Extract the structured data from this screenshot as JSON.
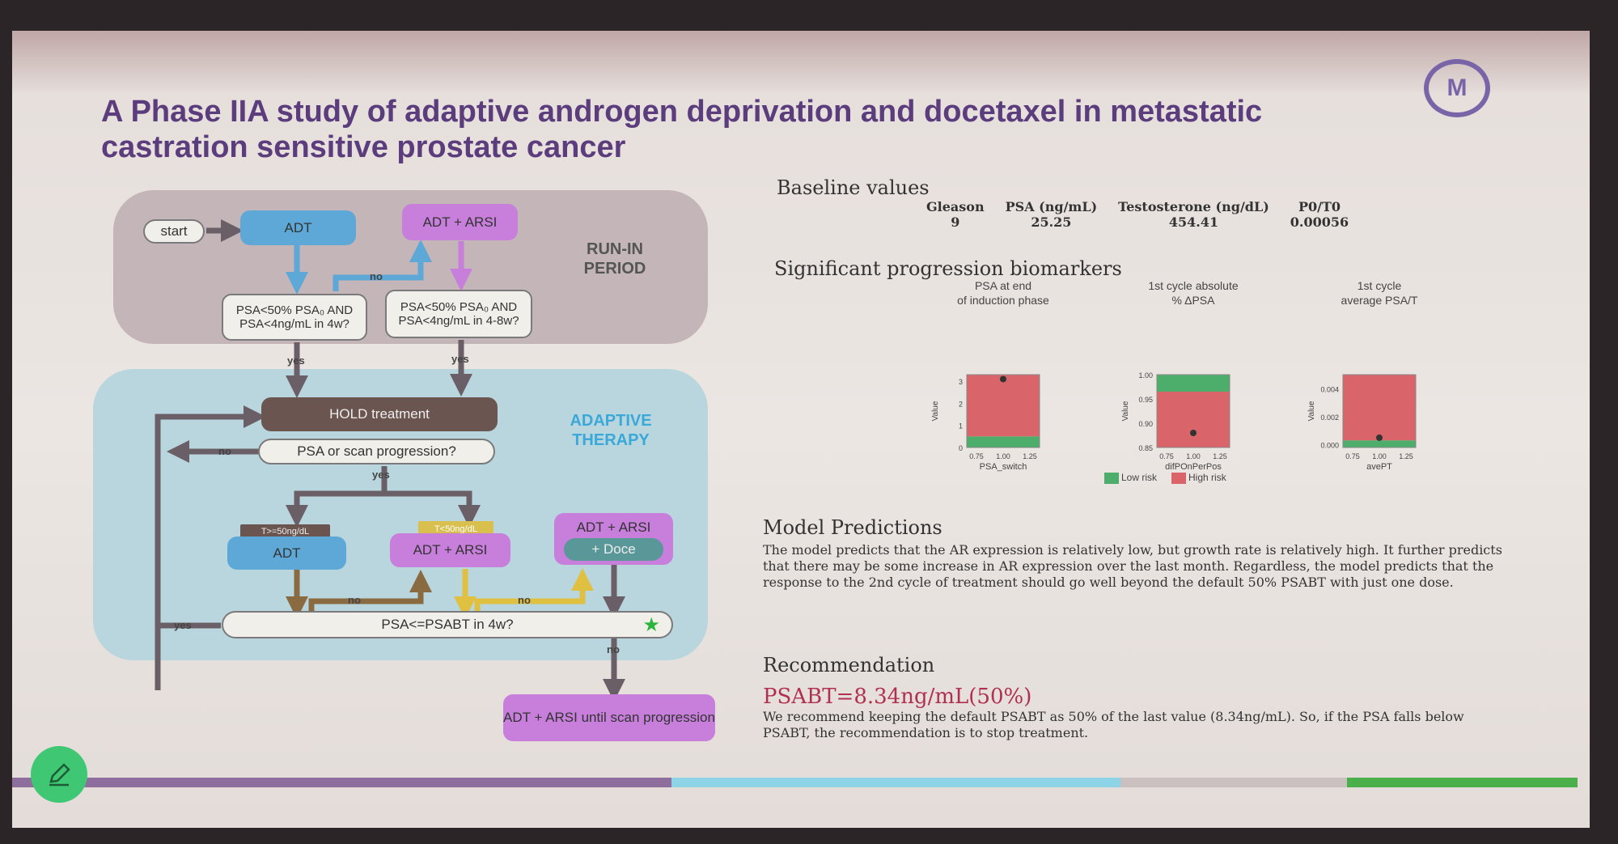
{
  "slide": {
    "title": "A Phase IIA study of adaptive androgen deprivation and docetaxel in metastatic castration sensitive prostate cancer",
    "logo_text": "M",
    "colors": {
      "title": "#5b3c7c",
      "adt": "#5ea8d8",
      "arsi": "#c77fdb",
      "hold": "#6b5550",
      "low_risk": "#4cae6a",
      "high_risk": "#d9646a",
      "recommendation": "#b03050"
    }
  },
  "flowchart": {
    "start": "start",
    "adt": "ADT",
    "adt_arsi": "ADT + ARSI",
    "runin_label": "RUN-IN PERIOD",
    "decision1": "PSA<50% PSA₀ AND PSA<4ng/mL in 4w?",
    "decision2": "PSA<50% PSA₀ AND PSA<4ng/mL in 4-8w?",
    "no": "no",
    "yes": "yes",
    "hold": "HOLD treatment",
    "progression": "PSA or scan progression?",
    "adaptive_label": "ADAPTIVE THERAPY",
    "t_high": "T>=50ng/dL",
    "t_low": "T<50ng/dL",
    "adt2": "ADT",
    "adt_arsi2": "ADT + ARSI",
    "adt_arsi3": "ADT + ARSI",
    "doce": "+ Doce",
    "psabt_check": "PSA<=PSABT in 4w?",
    "final": "ADT + ARSI until scan progression"
  },
  "baseline": {
    "heading": "Baseline values",
    "items": [
      {
        "label": "Gleason",
        "value": "9"
      },
      {
        "label": "PSA (ng/mL)",
        "value": "25.25"
      },
      {
        "label": "Testosterone (ng/dL)",
        "value": "454.41"
      },
      {
        "label": "P0/T0",
        "value": "0.00056"
      }
    ]
  },
  "biomarkers": {
    "heading": "Significant progression biomarkers"
  },
  "chart_data": [
    {
      "type": "area",
      "title": "PSA at end of induction phase",
      "xlabel": "PSA_switch",
      "ylabel": "Value",
      "xticks": [
        "0.75",
        "1.00",
        "1.25"
      ],
      "yticks": [
        "0",
        "1",
        "2",
        "3"
      ],
      "ylim": [
        0,
        3.3
      ],
      "low_risk": [
        0,
        0.5
      ],
      "high_risk": [
        0.5,
        3.3
      ],
      "point": {
        "x": 1.0,
        "y": 3.1
      }
    },
    {
      "type": "area",
      "title": "1st cycle absolute % ΔPSA",
      "xlabel": "difPOnPerPos",
      "ylabel": "Value",
      "xticks": [
        "0.75",
        "1.00",
        "1.25"
      ],
      "yticks": [
        "0.85",
        "0.90",
        "0.95",
        "1.00"
      ],
      "ylim": [
        0.85,
        1.0
      ],
      "low_risk": [
        0.965,
        1.0
      ],
      "high_risk": [
        0.85,
        0.965
      ],
      "point": {
        "x": 1.0,
        "y": 0.88
      }
    },
    {
      "type": "area",
      "title": "1st cycle average PSA/T",
      "xlabel": "avePT",
      "ylabel": "Value",
      "xticks": [
        "0.75",
        "1.00",
        "1.25"
      ],
      "yticks": [
        "0.000",
        "0.002",
        "0.004"
      ],
      "ylim": [
        -0.0002,
        0.005
      ],
      "low_risk": [
        -0.0002,
        0.0003
      ],
      "high_risk": [
        0.0003,
        0.005
      ],
      "point": {
        "x": 1.0,
        "y": 0.0005
      }
    }
  ],
  "legend": {
    "low": "Low risk",
    "high": "High risk"
  },
  "predictions": {
    "heading": "Model Predictions",
    "text": "The model predicts that the AR expression is relatively low, but growth rate is relatively high. It further predicts that there may be some increase in AR expression over the last month. Regardless, the model predicts that the response to the 2nd cycle of treatment should go well beyond the default 50% PSABT with just one dose."
  },
  "recommendation": {
    "heading": "Recommendation",
    "value": "PSABT=8.34ng/mL(50%)",
    "text": "We recommend keeping the default PSABT as 50% of the last value (8.34ng/mL). So, if the PSA falls below PSABT, the recommendation is to stop treatment."
  },
  "edit_button": {
    "icon": "pencil-icon"
  }
}
